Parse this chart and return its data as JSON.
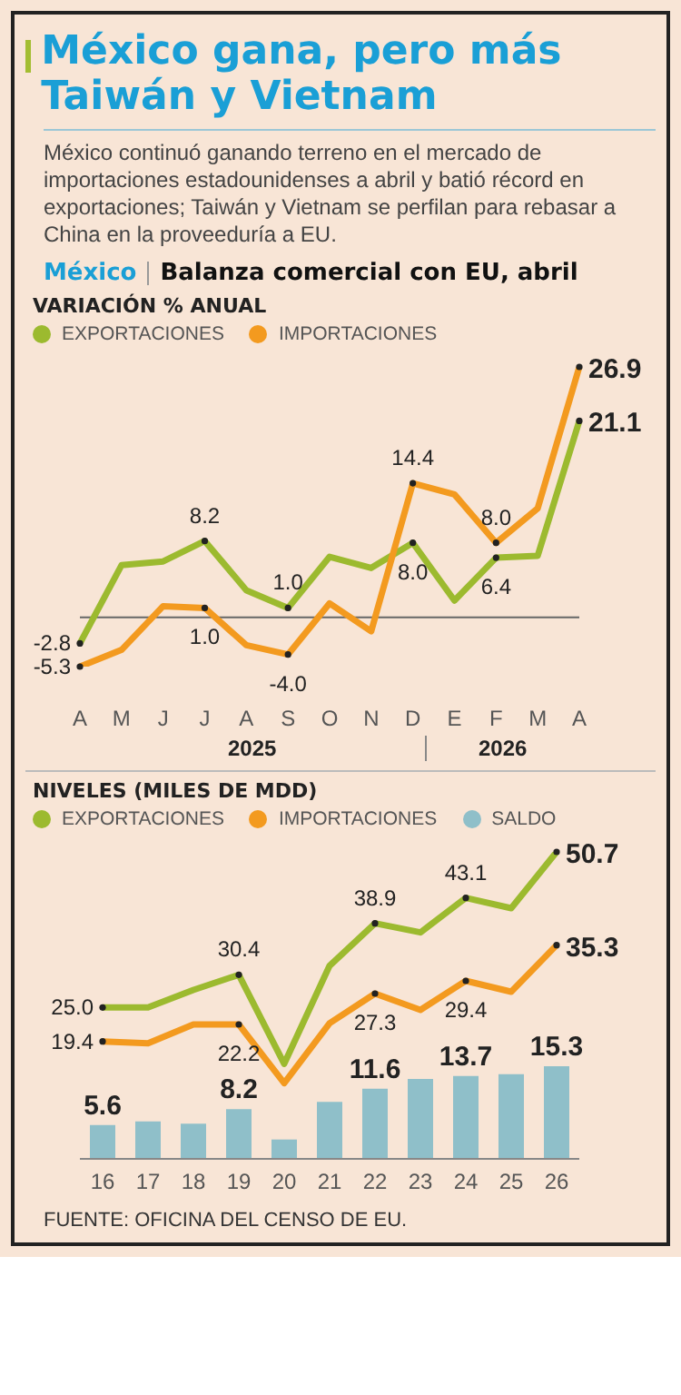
{
  "chart_data": [
    {
      "type": "line",
      "title": "México gana, pero más Taiwán y Vietnam",
      "subtitle": "México continuó ganando terreno en el mercado de importaciones estadounidenses a abril y batió récord en exportaciones; Taiwán y Vietnam se perfilan para rebasar a China en la proveeduría a EU.",
      "ylabel": "VARIACIÓN % ANUAL",
      "annotations": [
        "México",
        "Balanza comercial con EU, abril",
        "2025",
        "2026"
      ],
      "categories": [
        "A",
        "M",
        "J",
        "J",
        "A",
        "S",
        "O",
        "N",
        "D",
        "E",
        "F",
        "M",
        "A"
      ],
      "series": [
        {
          "name": "EXPORTACIONES",
          "color": "#9cba2f",
          "values": [
            -2.8,
            5.6,
            6.0,
            8.2,
            2.9,
            1.0,
            6.5,
            5.3,
            8.0,
            1.8,
            6.4,
            6.6,
            21.1
          ],
          "value_labels": [
            "-2.8",
            null,
            null,
            "8.2",
            null,
            "1.0",
            null,
            null,
            "8.0",
            null,
            "6.4",
            null,
            "21.1"
          ]
        },
        {
          "name": "IMPORTACIONES",
          "color": "#f39a1f",
          "values": [
            -5.3,
            -3.5,
            1.2,
            1.0,
            -3.0,
            -4.0,
            1.5,
            -1.5,
            14.4,
            13.2,
            8.0,
            11.7,
            26.9
          ],
          "value_labels": [
            "-5.3",
            null,
            null,
            "1.0",
            null,
            "-4.0",
            null,
            null,
            "14.4",
            null,
            "8.0",
            null,
            "26.9"
          ]
        }
      ],
      "ref_lines": [
        {
          "axis": "y",
          "value": 0,
          "color": "#666666"
        }
      ],
      "legend": "top left",
      "tick_labels": "x",
      "grid": false,
      "marker": "none",
      "line_style": "solid"
    },
    {
      "type": "line",
      "ylabel": "NIVELES (MILES DE MDD)",
      "annotations": [
        "FUENTE: OFICINA DEL CENSO DE EU."
      ],
      "categories": [
        "16",
        "17",
        "18",
        "19",
        "20",
        "21",
        "22",
        "23",
        "24",
        "25",
        "26"
      ],
      "series": [
        {
          "name": "EXPORTACIONES",
          "color": "#9cba2f",
          "values": [
            25.0,
            25.0,
            27.9,
            30.4,
            15.7,
            31.9,
            38.9,
            37.4,
            43.1,
            41.4,
            50.7
          ],
          "value_labels": [
            "25.0",
            null,
            null,
            "30.4",
            null,
            null,
            "38.9",
            null,
            "43.1",
            null,
            "50.7"
          ]
        },
        {
          "name": "IMPORTACIONES",
          "color": "#f39a1f",
          "values": [
            19.4,
            19.1,
            22.2,
            22.2,
            12.5,
            22.4,
            27.3,
            24.6,
            29.4,
            27.6,
            35.3
          ],
          "value_labels": [
            "19.4",
            null,
            null,
            "22.2",
            null,
            null,
            "27.3",
            null,
            "29.4",
            null,
            "35.3"
          ]
        },
        {
          "name": "SALDO",
          "type": "bar",
          "color": "#8fbfc9",
          "values": [
            5.6,
            6.2,
            5.8,
            8.2,
            3.2,
            9.4,
            11.6,
            13.2,
            13.7,
            14.0,
            15.3
          ],
          "value_labels": [
            "5.6",
            null,
            null,
            "8.2",
            null,
            null,
            "11.6",
            null,
            "13.7",
            null,
            "15.3"
          ]
        }
      ],
      "legend": "top left",
      "tick_labels": "x",
      "grid": false,
      "marker": "none",
      "line_style": "solid"
    }
  ]
}
